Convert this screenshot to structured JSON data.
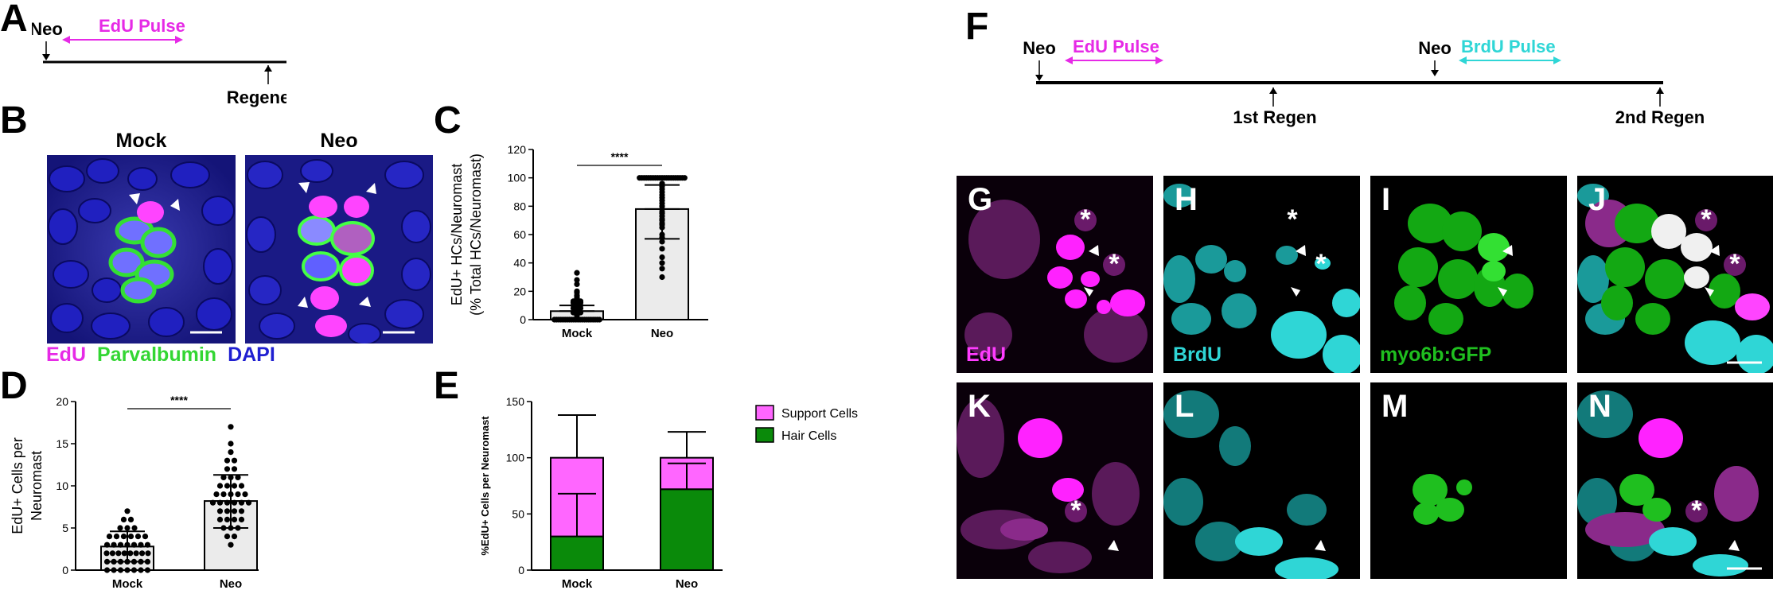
{
  "panel_letters": [
    "A",
    "B",
    "C",
    "D",
    "E",
    "F",
    "G",
    "H",
    "I",
    "J",
    "K",
    "L",
    "M",
    "N"
  ],
  "timeline_a": {
    "start": "Neo",
    "pulse": "EdU Pulse",
    "end": "Regeneration"
  },
  "timeline_f": {
    "start1": "Neo",
    "pulse1": "EdU Pulse",
    "mid": "1st Regen",
    "start2": "Neo",
    "pulse2": "BrdU Pulse",
    "end": "2nd Regen"
  },
  "panel_b": {
    "titles": [
      "Mock",
      "Neo"
    ],
    "legend": [
      {
        "text": "EdU",
        "color": "#e62ae6"
      },
      {
        "text": "Parvalbumin",
        "color": "#33d633"
      },
      {
        "text": "DAPI",
        "color": "#1f1fd1"
      }
    ]
  },
  "channel_labels": {
    "edu": "EdU",
    "brdu": "BrdU",
    "gfp": "myo6b:GFP"
  },
  "colors": {
    "magenta": "#ff3cff",
    "cyan": "#2fd6d6",
    "green": "#1fbf1f",
    "bar_gray": "#ebebeb",
    "support": "#ff66ff",
    "hair": "#0a8a0a"
  },
  "chart_data": [
    {
      "panel": "C",
      "type": "bar",
      "categories": [
        "Mock",
        "Neo"
      ],
      "values": [
        6,
        78
      ],
      "error": [
        [
          1,
          10
        ],
        [
          57,
          95
        ]
      ],
      "ylabel": "EdU+ HCs/Neuromast",
      "ylabel2": "(% Total HCs/Neuromast)",
      "ylim": [
        0,
        120
      ],
      "yticks": [
        0,
        20,
        40,
        60,
        80,
        100,
        120
      ],
      "significance": "****",
      "points": {
        "Mock": [
          0,
          0,
          0,
          0,
          0,
          0,
          0,
          0,
          0,
          0,
          0,
          0,
          0,
          0,
          0,
          0,
          0,
          0,
          0,
          0,
          0,
          0,
          3,
          5,
          5,
          6,
          7,
          8,
          8,
          9,
          10,
          10,
          11,
          12,
          12,
          13,
          13,
          14,
          15,
          16,
          17,
          19,
          20,
          25,
          28,
          33
        ],
        "Neo": [
          100,
          100,
          100,
          100,
          100,
          100,
          100,
          100,
          100,
          100,
          100,
          100,
          100,
          100,
          100,
          100,
          100,
          100,
          100,
          100,
          100,
          96,
          94,
          92,
          90,
          88,
          86,
          84,
          82,
          80,
          78,
          76,
          75,
          73,
          71,
          70,
          68,
          67,
          65,
          60,
          58,
          55,
          50,
          44,
          40,
          36,
          30
        ]
      }
    },
    {
      "panel": "D",
      "type": "bar",
      "categories": [
        "Mock",
        "Neo"
      ],
      "values": [
        2.8,
        8.2
      ],
      "error": [
        [
          1.0,
          4.6
        ],
        [
          5.0,
          11.3
        ]
      ],
      "ylabel": "EdU+ Cells per",
      "ylabel2": "Neuromast",
      "ylim": [
        0,
        20
      ],
      "yticks": [
        0,
        5,
        10,
        15,
        20
      ],
      "significance": "****",
      "points": {
        "Mock": [
          0,
          0,
          0,
          0,
          0,
          0,
          0,
          1,
          1,
          1,
          1,
          1,
          1,
          1,
          2,
          2,
          2,
          2,
          2,
          2,
          2,
          2,
          3,
          3,
          3,
          3,
          3,
          3,
          3,
          4,
          4,
          4,
          4,
          4,
          4,
          5,
          5,
          5,
          6,
          6,
          7
        ],
        "Neo": [
          3,
          4,
          4,
          5,
          5,
          5,
          6,
          6,
          6,
          6,
          7,
          7,
          7,
          7,
          8,
          8,
          8,
          8,
          8,
          8,
          9,
          9,
          9,
          9,
          9,
          10,
          10,
          10,
          10,
          11,
          11,
          11,
          12,
          12,
          13,
          13,
          14,
          15,
          17
        ]
      }
    },
    {
      "panel": "E",
      "type": "stacked-bar",
      "categories": [
        "Mock",
        "Neo"
      ],
      "series": [
        {
          "name": "Support Cells",
          "values": [
            70,
            28
          ],
          "error_top": [
            138,
            123
          ]
        },
        {
          "name": "Hair Cells",
          "values": [
            30,
            72
          ],
          "error_top": [
            68,
            95
          ]
        }
      ],
      "ylabel": "%EdU+ Cells per Neuromast",
      "ylim": [
        0,
        150
      ],
      "yticks": [
        0,
        50,
        100,
        150
      ]
    }
  ]
}
